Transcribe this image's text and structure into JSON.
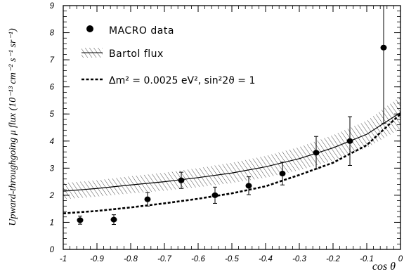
{
  "chart_data": {
    "type": "scatter",
    "xlabel": "cos θ",
    "ylabel": "Upward-throughgoing μ flux (10⁻¹³ cm⁻² s⁻¹ sr⁻¹)",
    "xlim": [
      -1,
      0
    ],
    "ylim": [
      0,
      9
    ],
    "x_ticks": [
      "-1",
      "-0.9",
      "-0.8",
      "-0.7",
      "-0.6",
      "-0.5",
      "-0.4",
      "-0.3",
      "-0.2",
      "-0.1",
      "0"
    ],
    "y_ticks": [
      "0",
      "1",
      "2",
      "3",
      "4",
      "5",
      "6",
      "7",
      "8",
      "9"
    ],
    "legend": {
      "placement": "top-left",
      "entries": [
        {
          "label": "MACRO data",
          "style": "filled-circle"
        },
        {
          "label": "Bartol flux",
          "style": "hatched-band"
        },
        {
          "label": "Δm² = 0.0025 eV², sin²2ϑ = 1",
          "style": "dashed-line"
        }
      ]
    },
    "series": [
      {
        "name": "MACRO data",
        "kind": "points",
        "x": [
          -0.95,
          -0.85,
          -0.75,
          -0.65,
          -0.55,
          -0.45,
          -0.35,
          -0.25,
          -0.15,
          -0.05
        ],
        "y": [
          1.08,
          1.1,
          1.85,
          2.55,
          2.0,
          2.35,
          2.8,
          3.57,
          4.0,
          7.45
        ],
        "err_low": [
          0.15,
          0.18,
          0.25,
          0.3,
          0.3,
          0.33,
          0.42,
          0.6,
          0.9,
          2.8
        ],
        "err_high": [
          0.15,
          0.18,
          0.25,
          0.3,
          0.3,
          0.33,
          0.42,
          0.6,
          0.9,
          2.8
        ]
      },
      {
        "name": "Bartol flux",
        "kind": "band",
        "x": [
          -1.0,
          -0.9,
          -0.8,
          -0.7,
          -0.6,
          -0.5,
          -0.4,
          -0.3,
          -0.2,
          -0.1,
          0.0
        ],
        "y": [
          2.15,
          2.25,
          2.38,
          2.5,
          2.65,
          2.82,
          3.05,
          3.35,
          3.75,
          4.25,
          5.05
        ],
        "band_low": [
          1.85,
          1.95,
          2.07,
          2.17,
          2.3,
          2.45,
          2.65,
          2.92,
          3.28,
          3.75,
          4.45
        ],
        "band_high": [
          2.45,
          2.55,
          2.7,
          2.83,
          3.0,
          3.2,
          3.45,
          3.78,
          4.22,
          4.75,
          5.65
        ]
      },
      {
        "name": "Δm² = 0.0025 eV², sin²2ϑ = 1",
        "kind": "dashed-line",
        "x": [
          -1.0,
          -0.9,
          -0.8,
          -0.7,
          -0.6,
          -0.5,
          -0.4,
          -0.3,
          -0.2,
          -0.1,
          0.0
        ],
        "y": [
          1.33,
          1.42,
          1.55,
          1.7,
          1.87,
          2.07,
          2.33,
          2.75,
          3.2,
          3.85,
          5.0
        ]
      }
    ]
  }
}
